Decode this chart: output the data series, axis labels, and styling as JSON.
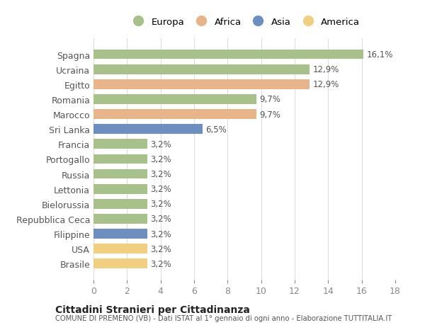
{
  "categories": [
    "Spagna",
    "Ucraina",
    "Egitto",
    "Romania",
    "Marocco",
    "Sri Lanka",
    "Francia",
    "Portogallo",
    "Russia",
    "Lettonia",
    "Bielorussia",
    "Repubblica Ceca",
    "Filippine",
    "USA",
    "Brasile"
  ],
  "values": [
    16.1,
    12.9,
    12.9,
    9.7,
    9.7,
    6.5,
    3.2,
    3.2,
    3.2,
    3.2,
    3.2,
    3.2,
    3.2,
    3.2,
    3.2
  ],
  "labels": [
    "16,1%",
    "12,9%",
    "12,9%",
    "9,7%",
    "9,7%",
    "6,5%",
    "3,2%",
    "3,2%",
    "3,2%",
    "3,2%",
    "3,2%",
    "3,2%",
    "3,2%",
    "3,2%",
    "3,2%"
  ],
  "continents": [
    "Europa",
    "Europa",
    "Africa",
    "Europa",
    "Africa",
    "Asia",
    "Europa",
    "Europa",
    "Europa",
    "Europa",
    "Europa",
    "Europa",
    "Asia",
    "America",
    "America"
  ],
  "colors": {
    "Europa": "#a8c08a",
    "Africa": "#e8b48a",
    "Asia": "#6a8fc0",
    "America": "#f0d080"
  },
  "legend_order": [
    "Europa",
    "Africa",
    "Asia",
    "America"
  ],
  "xlim": [
    0,
    18
  ],
  "xticks": [
    0,
    2,
    4,
    6,
    8,
    10,
    12,
    14,
    16,
    18
  ],
  "title": "Cittadini Stranieri per Cittadinanza",
  "subtitle": "COMUNE DI PREMENO (VB) - Dati ISTAT al 1° gennaio di ogni anno - Elaborazione TUTTITALIA.IT",
  "background_color": "#ffffff",
  "grid_color": "#dddddd"
}
